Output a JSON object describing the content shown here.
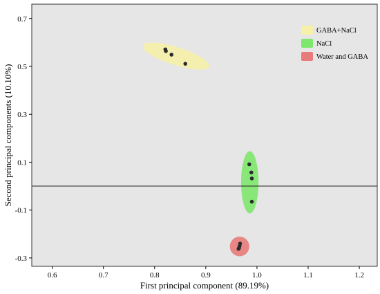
{
  "chart_data": {
    "type": "scatter",
    "xlabel": "First principal component (89.19%)",
    "ylabel": "Second principal components (10.10%)",
    "xlim": [
      0.56,
      1.235
    ],
    "ylim": [
      -0.335,
      0.76
    ],
    "x_ticks": [
      "0.6",
      "0.7",
      "0.8",
      "0.9",
      "1.0",
      "1.1",
      "1.2"
    ],
    "y_ticks": [
      "0.7",
      "0.5",
      "0.3",
      "0.1",
      "-0.1",
      "-0.3"
    ],
    "x_tick_values": [
      0.6,
      0.7,
      0.8,
      0.9,
      1.0,
      1.1,
      1.2
    ],
    "y_tick_values": [
      0.7,
      0.5,
      0.3,
      0.1,
      -0.1,
      -0.3
    ],
    "reference_line_y": 0.0,
    "plot_background": "#e6e6e6",
    "grid": false,
    "legend_position": "top-right",
    "series": [
      {
        "name": "GABA+NaCl",
        "color": "#f6f0a8",
        "ellipse": {
          "cx": 0.842,
          "cy": 0.543,
          "rx": 0.078,
          "ry": 0.017,
          "angle_deg": 34
        },
        "points": [
          {
            "x": 0.821,
            "y": 0.571
          },
          {
            "x": 0.822,
            "y": 0.564
          },
          {
            "x": 0.833,
            "y": 0.549
          },
          {
            "x": 0.86,
            "y": 0.511
          }
        ]
      },
      {
        "name": "NaCl",
        "color": "#7ee76e",
        "ellipse": {
          "cx": 0.986,
          "cy": 0.016,
          "rx": 0.017,
          "ry": 0.13,
          "angle_deg": 0
        },
        "points": [
          {
            "x": 0.985,
            "y": 0.091
          },
          {
            "x": 0.989,
            "y": 0.057
          },
          {
            "x": 0.99,
            "y": 0.032
          },
          {
            "x": 0.99,
            "y": -0.065
          }
        ]
      },
      {
        "name": "Water and GABA",
        "color": "#e87b7b",
        "ellipse": {
          "cx": 0.966,
          "cy": -0.252,
          "rx": 0.019,
          "ry": 0.041,
          "angle_deg": 0
        },
        "points": [
          {
            "x": 0.967,
            "y": -0.24
          },
          {
            "x": 0.966,
            "y": -0.25
          },
          {
            "x": 0.965,
            "y": -0.258
          },
          {
            "x": 0.964,
            "y": -0.262
          }
        ]
      }
    ]
  }
}
